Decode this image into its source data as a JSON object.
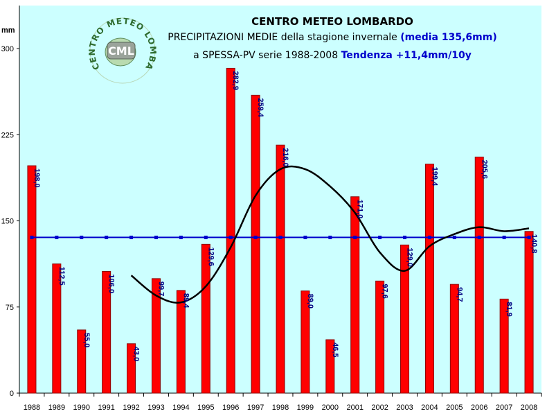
{
  "header": {
    "title": "CENTRO METEO LOMBARDO",
    "line2_prefix": "PRECIPITAZIONI MEDIE della stagione invernale ",
    "line2_highlight": "(media 135,6mm)",
    "line3_prefix": "a SPESSA-PV serie 1988-2008  ",
    "line3_highlight": "Tendenza +11,4mm/10y"
  },
  "logo": {
    "ring_text": "CENTRO METEO LOMBARDO",
    "badge": "CML"
  },
  "chart_data": {
    "type": "bar",
    "categories": [
      "1988",
      "1989",
      "1990",
      "1991",
      "1992",
      "1993",
      "1994",
      "1995",
      "1996",
      "1997",
      "1998",
      "1999",
      "2000",
      "2001",
      "2002",
      "2003",
      "2004",
      "2005",
      "2006",
      "2007",
      "2008"
    ],
    "series": [
      {
        "type": "bar",
        "values": [
          198.0,
          112.5,
          55.0,
          106.0,
          43.0,
          99.7,
          89.4,
          129.6,
          282.9,
          259.4,
          216.0,
          89.0,
          46.5,
          171.0,
          97.6,
          129.0,
          199.4,
          94.7,
          205.6,
          81.9,
          140.8
        ]
      },
      {
        "type": "line",
        "values": [
          null,
          null,
          null,
          null,
          102.5,
          85.0,
          79.0,
          93.0,
          127.0,
          172.0,
          195.0,
          195.0,
          180.0,
          157.0,
          122.5,
          106.5,
          128.0,
          138.5,
          144.5,
          141.0,
          143.5
        ]
      },
      {
        "type": "line",
        "values": [
          135.6,
          135.6,
          135.6,
          135.6,
          135.6,
          135.6,
          135.6,
          135.6,
          135.6,
          135.6,
          135.6,
          135.6,
          135.6,
          135.6,
          135.6,
          135.6,
          135.6,
          135.6,
          135.6,
          135.6,
          135.6
        ]
      }
    ],
    "data_labels": [
      "198,0",
      "112,5",
      "55,0",
      "106,0",
      "43,0",
      "99,7",
      "89,4",
      "129,6",
      "282,9",
      "259,4",
      "216,0",
      "89,0",
      "46,5",
      "171,0",
      "97,6",
      "129,0",
      "199,4",
      "94,7",
      "205,6",
      "81,9",
      "140,8"
    ],
    "yunit": "mm",
    "yticks": [
      0,
      75,
      150,
      225,
      300
    ],
    "ylim": [
      0,
      337.5
    ],
    "grid": false,
    "colors": {
      "bar": "#ff0000",
      "bar_edge": "#8b0000",
      "plot_bg": "#ccffff",
      "trend": "#000000",
      "mean": "#0000cc",
      "label": "#000080"
    }
  }
}
